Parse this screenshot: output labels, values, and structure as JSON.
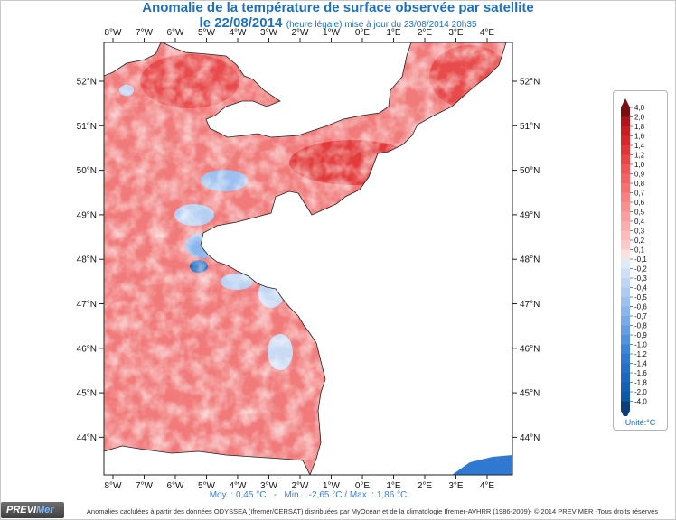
{
  "title": {
    "line1": "Anomalie de la température de surface observée par satellite",
    "line2_main": "le 22/08/2014",
    "line2_small": "(heure légale) mise à jour du 23/08/2014 20h35"
  },
  "axes": {
    "longitude_labels": [
      "8°W",
      "7°W",
      "6°W",
      "5°W",
      "4°W",
      "3°W",
      "2°W",
      "1°W",
      "0°E",
      "1°E",
      "2°E",
      "3°E",
      "4°E"
    ],
    "latitude_labels": [
      "52°N",
      "51°N",
      "50°N",
      "49°N",
      "48°N",
      "47°N",
      "46°N",
      "45°N",
      "44°N"
    ]
  },
  "stats": {
    "moy": "Moy. : 0,45 °C",
    "min": "Min. : -2,65 °C",
    "max": "Max. : 1,86 °C"
  },
  "legend": {
    "unit": "Unité:°C",
    "labels": [
      "4,0",
      "2,0",
      "1,8",
      "1,6",
      "1,4",
      "1,2",
      "1,0",
      "0,9",
      "0,8",
      "0,7",
      "0,6",
      "0,5",
      "0,4",
      "0,3",
      "0,2",
      "0,1",
      "-0,1",
      "-0,2",
      "-0,3",
      "-0,4",
      "-0,5",
      "-0,6",
      "-0,7",
      "-0,8",
      "-0,9",
      "-1,0",
      "-1,2",
      "-1,4",
      "-1,6",
      "-1,8",
      "-2,0",
      "-4,0"
    ],
    "colors": [
      "#7a0f12",
      "#b3141a",
      "#c81d22",
      "#d8262b",
      "#e23436",
      "#ea4444",
      "#f05454",
      "#f46363",
      "#f67272",
      "#f78181",
      "#f89090",
      "#f99f9f",
      "#faadad",
      "#fbbcbc",
      "#fccaca",
      "#fde0e0",
      "#dfeaf8",
      "#cfdff5",
      "#bfd5f3",
      "#afcbf1",
      "#9dc0ef",
      "#8bb5ec",
      "#78a9e8",
      "#659de4",
      "#5191df",
      "#3d85da",
      "#2f79d2",
      "#2570c9",
      "#1c67bf",
      "#1460b5",
      "#0f58a8",
      "#0b3d78"
    ]
  },
  "logo": {
    "part1": "PREVI",
    "part2": "Mer"
  },
  "credits": "Anomalies caclulées à partir des données ODYSSEA (Ifremer/CERSAT) distribuées par MyOcean et de la climatologie Ifremer-AVHRR (1986-2009)- © 2014 PREVIMER -Tous droits réservés"
}
